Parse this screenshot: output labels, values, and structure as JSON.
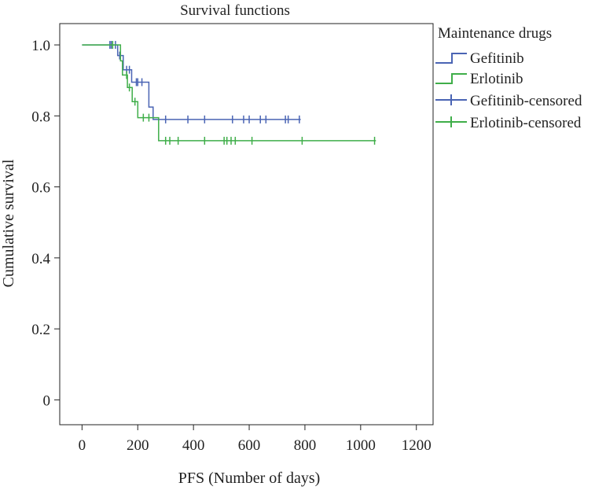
{
  "chart_data": {
    "type": "line",
    "title": "Survival functions",
    "xlabel": "PFS (Number of days)",
    "ylabel": "Cumulative survival",
    "xlim": [
      -80,
      1260
    ],
    "ylim": [
      -0.07,
      1.06
    ],
    "xticks": [
      0,
      200,
      400,
      600,
      800,
      1000,
      1200
    ],
    "yticks": [
      0,
      0.2,
      0.4,
      0.6,
      0.8,
      1.0
    ],
    "ytick_labels": [
      "0",
      "0.2",
      "0.4",
      "0.6",
      "0.8",
      "1.0"
    ],
    "grid": false,
    "legend_title": "Maintenance drugs",
    "legend_position": "right",
    "legend": [
      "Gefitinib",
      "Erlotinib",
      "Gefitinib-censored",
      "Erlotinib-censored"
    ],
    "colors": {
      "Gefitinib": "#4a64b4",
      "Erlotinib": "#3fae49",
      "axis": "#222222"
    },
    "series": [
      {
        "name": "Gefitinib",
        "step": [
          [
            0,
            1.0
          ],
          [
            128,
            1.0
          ],
          [
            128,
            0.97
          ],
          [
            148,
            0.97
          ],
          [
            148,
            0.93
          ],
          [
            178,
            0.93
          ],
          [
            178,
            0.895
          ],
          [
            240,
            0.895
          ],
          [
            240,
            0.825
          ],
          [
            255,
            0.825
          ],
          [
            255,
            0.79
          ],
          [
            785,
            0.79
          ]
        ],
        "censored": [
          [
            100,
            1.0
          ],
          [
            105,
            1.0
          ],
          [
            120,
            1.0
          ],
          [
            135,
            0.97
          ],
          [
            160,
            0.93
          ],
          [
            170,
            0.93
          ],
          [
            195,
            0.895
          ],
          [
            200,
            0.895
          ],
          [
            215,
            0.895
          ],
          [
            300,
            0.79
          ],
          [
            380,
            0.79
          ],
          [
            440,
            0.79
          ],
          [
            540,
            0.79
          ],
          [
            580,
            0.79
          ],
          [
            600,
            0.79
          ],
          [
            640,
            0.79
          ],
          [
            660,
            0.79
          ],
          [
            730,
            0.79
          ],
          [
            740,
            0.79
          ],
          [
            780,
            0.79
          ]
        ]
      },
      {
        "name": "Erlotinib",
        "step": [
          [
            0,
            1.0
          ],
          [
            138,
            1.0
          ],
          [
            138,
            0.955
          ],
          [
            145,
            0.955
          ],
          [
            145,
            0.915
          ],
          [
            163,
            0.915
          ],
          [
            163,
            0.88
          ],
          [
            180,
            0.88
          ],
          [
            180,
            0.84
          ],
          [
            200,
            0.84
          ],
          [
            200,
            0.795
          ],
          [
            275,
            0.795
          ],
          [
            275,
            0.73
          ],
          [
            1055,
            0.73
          ]
        ],
        "censored": [
          [
            110,
            1.0
          ],
          [
            160,
            0.915
          ],
          [
            170,
            0.88
          ],
          [
            190,
            0.84
          ],
          [
            220,
            0.795
          ],
          [
            240,
            0.795
          ],
          [
            300,
            0.73
          ],
          [
            315,
            0.73
          ],
          [
            345,
            0.73
          ],
          [
            440,
            0.73
          ],
          [
            510,
            0.73
          ],
          [
            520,
            0.73
          ],
          [
            535,
            0.73
          ],
          [
            550,
            0.73
          ],
          [
            610,
            0.73
          ],
          [
            790,
            0.73
          ],
          [
            1050,
            0.73
          ]
        ]
      }
    ]
  }
}
